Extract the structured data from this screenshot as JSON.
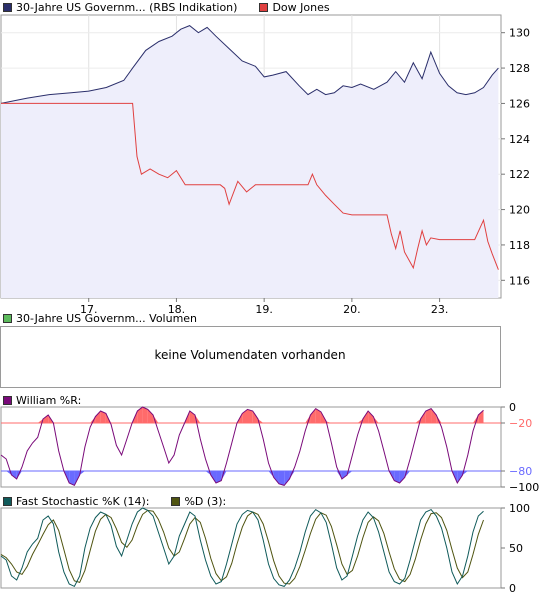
{
  "colors": {
    "bond": "#2b2f6b",
    "dow": "#e04040",
    "bond_fill": "#eeeefb",
    "william": "#7a0a7a",
    "fast_k": "#0f5a5a",
    "slow_d": "#4f5410",
    "overbought_fill": "#ff6b6b",
    "oversold_fill": "#6a6aff",
    "vol_swatch": "#5dbb5d"
  },
  "legend": {
    "bond_label": "30-Jahre US Governm... (RBS Indikation)",
    "dow_label": "Dow Jones",
    "volume_label": "30-Jahre US Governm... Volumen",
    "volume_message": "keine Volumendaten vorhanden",
    "william_label": "William %R:",
    "fast_k_label": "Fast Stochastic %K (14):",
    "slow_d_label": "%D (3):"
  },
  "chart_data": [
    {
      "type": "line",
      "x_tick_labels": [
        "17.",
        "18.",
        "19.",
        "20.",
        "23."
      ],
      "x_tick_positions": [
        1,
        2,
        3,
        4,
        5
      ],
      "xlim": [
        0,
        5.7
      ],
      "ylim": [
        115,
        131
      ],
      "y_ticks": [
        116,
        118,
        120,
        122,
        124,
        126,
        128,
        130
      ],
      "series": [
        {
          "name": "30-Jahre US Governm... (RBS Indikation)",
          "x": [
            0.0,
            0.3,
            0.55,
            0.8,
            1.0,
            1.2,
            1.4,
            1.5,
            1.65,
            1.8,
            1.95,
            2.05,
            2.15,
            2.25,
            2.35,
            2.45,
            2.6,
            2.75,
            2.9,
            3.0,
            3.1,
            3.25,
            3.4,
            3.5,
            3.6,
            3.7,
            3.8,
            3.9,
            4.0,
            4.1,
            4.25,
            4.4,
            4.5,
            4.6,
            4.7,
            4.8,
            4.9,
            5.0,
            5.1,
            5.2,
            5.3,
            5.4,
            5.5,
            5.6,
            5.67
          ],
          "y": [
            126.0,
            126.3,
            126.5,
            126.6,
            126.7,
            126.9,
            127.3,
            128.0,
            129.0,
            129.5,
            129.8,
            130.2,
            130.4,
            130.0,
            130.3,
            129.8,
            129.1,
            128.4,
            128.1,
            127.5,
            127.6,
            127.8,
            127.0,
            126.5,
            126.8,
            126.5,
            126.6,
            127.0,
            126.9,
            127.1,
            126.8,
            127.2,
            127.8,
            127.2,
            128.3,
            127.4,
            128.9,
            127.7,
            127.0,
            126.6,
            126.5,
            126.6,
            126.9,
            127.6,
            128.0
          ]
        },
        {
          "name": "Dow Jones",
          "x": [
            0.0,
            0.55,
            1.0,
            1.4,
            1.5,
            1.55,
            1.6,
            1.7,
            1.8,
            1.9,
            2.0,
            2.1,
            2.4,
            2.5,
            2.55,
            2.6,
            2.7,
            2.8,
            2.9,
            3.0,
            3.2,
            3.4,
            3.5,
            3.55,
            3.6,
            3.7,
            3.8,
            3.9,
            4.0,
            4.2,
            4.4,
            4.45,
            4.5,
            4.55,
            4.6,
            4.7,
            4.75,
            4.8,
            4.85,
            4.9,
            5.0,
            5.2,
            5.4,
            5.5,
            5.55,
            5.6,
            5.67
          ],
          "y": [
            126.0,
            126.0,
            126.0,
            126.0,
            126.0,
            123.0,
            122.0,
            122.3,
            122.0,
            121.8,
            122.2,
            121.4,
            121.4,
            121.4,
            121.2,
            120.3,
            121.6,
            121.0,
            121.4,
            121.4,
            121.4,
            121.4,
            121.4,
            122.0,
            121.4,
            120.8,
            120.3,
            119.8,
            119.7,
            119.7,
            119.7,
            118.6,
            117.8,
            118.8,
            117.6,
            116.7,
            117.8,
            118.8,
            118.0,
            118.4,
            118.3,
            118.3,
            118.3,
            119.4,
            118.2,
            117.5,
            116.6
          ]
        }
      ]
    },
    {
      "type": "area",
      "title": "William %R:",
      "ylim": [
        -100,
        0
      ],
      "y_ticks": [
        0,
        -20,
        -80,
        -100
      ],
      "levels": [
        -20,
        -80
      ],
      "series": [
        {
          "name": "William %R:",
          "values": [
            -60,
            -65,
            -85,
            -90,
            -75,
            -55,
            -45,
            -38,
            -15,
            -10,
            -20,
            -55,
            -80,
            -95,
            -98,
            -85,
            -50,
            -25,
            -12,
            -5,
            -8,
            -22,
            -48,
            -60,
            -40,
            -20,
            -5,
            0,
            -3,
            -10,
            -30,
            -50,
            -70,
            -60,
            -35,
            -20,
            -5,
            -10,
            -40,
            -65,
            -85,
            -95,
            -92,
            -70,
            -45,
            -20,
            -8,
            -3,
            -5,
            -15,
            -40,
            -70,
            -88,
            -96,
            -98,
            -90,
            -75,
            -55,
            -30,
            -10,
            -2,
            -6,
            -18,
            -45,
            -75,
            -90,
            -85,
            -60,
            -35,
            -15,
            -5,
            -12,
            -30,
            -55,
            -80,
            -92,
            -95,
            -88,
            -65,
            -40,
            -15,
            -5,
            -2,
            -10,
            -25,
            -50,
            -80,
            -95,
            -85,
            -60,
            -30,
            -10,
            -4
          ]
        }
      ]
    },
    {
      "type": "line",
      "ylim": [
        0,
        100
      ],
      "y_ticks": [
        0,
        50,
        100
      ],
      "series": [
        {
          "name": "Fast Stochastic %K (14):",
          "values": [
            40,
            35,
            15,
            10,
            25,
            45,
            55,
            62,
            85,
            90,
            80,
            45,
            20,
            5,
            2,
            15,
            50,
            75,
            88,
            95,
            92,
            78,
            52,
            40,
            60,
            80,
            95,
            100,
            97,
            90,
            70,
            50,
            30,
            40,
            65,
            80,
            95,
            90,
            60,
            35,
            15,
            5,
            8,
            30,
            55,
            80,
            92,
            97,
            95,
            85,
            60,
            30,
            12,
            4,
            2,
            10,
            25,
            45,
            70,
            90,
            98,
            94,
            82,
            55,
            25,
            10,
            15,
            40,
            65,
            85,
            95,
            88,
            70,
            45,
            20,
            8,
            5,
            12,
            35,
            60,
            85,
            95,
            98,
            90,
            75,
            50,
            20,
            5,
            15,
            40,
            70,
            90,
            96
          ]
        },
        {
          "name": "%D (3):",
          "values": [
            42,
            38,
            30,
            20,
            17,
            27,
            42,
            54,
            67,
            79,
            85,
            72,
            48,
            23,
            9,
            7,
            22,
            47,
            71,
            86,
            92,
            88,
            74,
            57,
            51,
            60,
            78,
            92,
            97,
            96,
            86,
            70,
            50,
            40,
            45,
            62,
            80,
            88,
            82,
            62,
            37,
            18,
            9,
            14,
            31,
            55,
            76,
            90,
            95,
            92,
            80,
            58,
            34,
            15,
            6,
            5,
            12,
            27,
            47,
            68,
            86,
            94,
            91,
            77,
            54,
            30,
            17,
            22,
            40,
            63,
            82,
            89,
            84,
            68,
            45,
            24,
            11,
            8,
            17,
            36,
            60,
            80,
            93,
            94,
            88,
            72,
            48,
            25,
            13,
            20,
            42,
            67,
            85
          ]
        }
      ]
    }
  ]
}
